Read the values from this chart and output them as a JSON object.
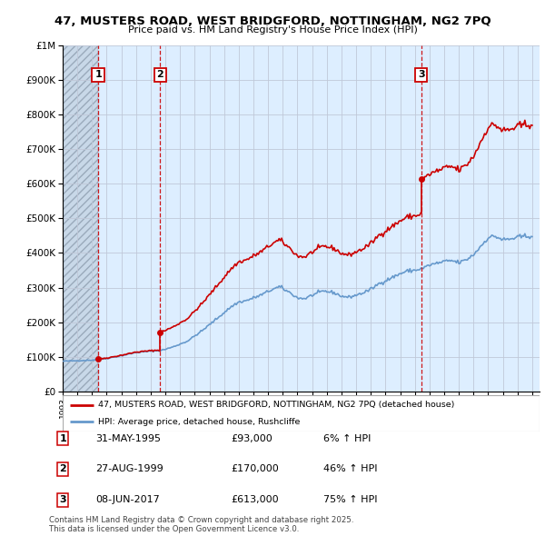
{
  "title": "47, MUSTERS ROAD, WEST BRIDGFORD, NOTTINGHAM, NG2 7PQ",
  "subtitle": "Price paid vs. HM Land Registry's House Price Index (HPI)",
  "property_label": "47, MUSTERS ROAD, WEST BRIDGFORD, NOTTINGHAM, NG2 7PQ (detached house)",
  "hpi_label": "HPI: Average price, detached house, Rushcliffe",
  "footer": "Contains HM Land Registry data © Crown copyright and database right 2025.\nThis data is licensed under the Open Government Licence v3.0.",
  "sales": [
    {
      "date": 1995.42,
      "price": 93000,
      "label": "1"
    },
    {
      "date": 1999.65,
      "price": 170000,
      "label": "2"
    },
    {
      "date": 2017.44,
      "price": 613000,
      "label": "3"
    }
  ],
  "sale_annotations": [
    {
      "num": "1",
      "date": "31-MAY-1995",
      "price": "£93,000",
      "pct": "6% ↑ HPI"
    },
    {
      "num": "2",
      "date": "27-AUG-1999",
      "price": "£170,000",
      "pct": "46% ↑ HPI"
    },
    {
      "num": "3",
      "date": "08-JUN-2017",
      "price": "£613,000",
      "pct": "75% ↑ HPI"
    }
  ],
  "ylim": [
    0,
    1000000
  ],
  "xlim": [
    1993,
    2025.5
  ],
  "property_color": "#cc0000",
  "hpi_color": "#6699cc",
  "vline_color": "#cc0000",
  "label_box_color": "#cc0000",
  "background_color": "#ddeeff",
  "grid_color": "#c0c8d8"
}
